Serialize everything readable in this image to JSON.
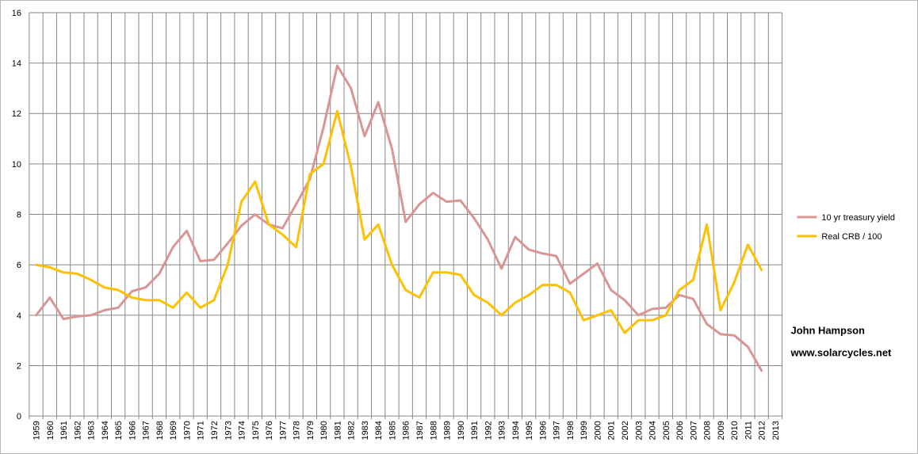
{
  "chart_data": {
    "type": "line",
    "x": [
      1959,
      1960,
      1961,
      1962,
      1963,
      1964,
      1965,
      1966,
      1967,
      1968,
      1969,
      1970,
      1971,
      1972,
      1973,
      1974,
      1975,
      1976,
      1977,
      1978,
      1979,
      1980,
      1981,
      1982,
      1983,
      1984,
      1985,
      1986,
      1987,
      1988,
      1989,
      1990,
      1991,
      1992,
      1993,
      1994,
      1995,
      1996,
      1997,
      1998,
      1999,
      2000,
      2001,
      2002,
      2003,
      2004,
      2005,
      2006,
      2007,
      2008,
      2009,
      2010,
      2011,
      2012
    ],
    "x_tick_labels": [
      "1959",
      "1960",
      "1961",
      "1962",
      "1963",
      "1964",
      "1965",
      "1966",
      "1967",
      "1968",
      "1969",
      "1970",
      "1971",
      "1972",
      "1973",
      "1974",
      "1975",
      "1976",
      "1977",
      "1978",
      "1979",
      "1980",
      "1981",
      "1982",
      "1983",
      "1984",
      "1985",
      "1986",
      "1987",
      "1988",
      "1989",
      "1990",
      "1991",
      "1992",
      "1993",
      "1994",
      "1995",
      "1996",
      "1997",
      "1998",
      "1999",
      "2000",
      "2001",
      "2002",
      "2003",
      "2004",
      "2005",
      "2006",
      "2007",
      "2008",
      "2009",
      "2010",
      "2011",
      "2012",
      "2013"
    ],
    "y_ticks": [
      "0",
      "2",
      "4",
      "6",
      "8",
      "10",
      "12",
      "14",
      "16"
    ],
    "ylim": [
      0,
      16
    ],
    "grid": true,
    "legend_position": "right",
    "series": [
      {
        "name": "10 yr treasury yield",
        "color": "#d99594",
        "values": [
          4.0,
          4.7,
          3.85,
          3.95,
          4.0,
          4.2,
          4.3,
          4.95,
          5.1,
          5.65,
          6.7,
          7.35,
          6.15,
          6.2,
          6.85,
          7.55,
          8.0,
          7.6,
          7.45,
          8.4,
          9.4,
          11.45,
          13.9,
          13.0,
          11.1,
          12.45,
          10.6,
          7.7,
          8.4,
          8.85,
          8.5,
          8.55,
          7.85,
          7.0,
          5.85,
          7.1,
          6.6,
          6.45,
          6.35,
          5.25,
          5.65,
          6.05,
          5.0,
          4.6,
          4.0,
          4.25,
          4.3,
          4.8,
          4.65,
          3.65,
          3.25,
          3.2,
          2.75,
          1.8
        ]
      },
      {
        "name": "Real CRB / 100",
        "color": "#ffc000",
        "values": [
          6.0,
          5.9,
          5.7,
          5.65,
          5.4,
          5.1,
          5.0,
          4.7,
          4.6,
          4.6,
          4.3,
          4.9,
          4.3,
          4.6,
          6.0,
          8.5,
          9.3,
          7.6,
          7.2,
          6.7,
          9.6,
          10.0,
          12.1,
          9.9,
          7.0,
          7.6,
          6.0,
          5.0,
          4.7,
          5.7,
          5.7,
          5.6,
          4.8,
          4.5,
          4.0,
          4.5,
          4.8,
          5.2,
          5.2,
          4.9,
          3.8,
          4.0,
          4.2,
          3.3,
          3.8,
          3.8,
          4.0,
          5.0,
          5.4,
          7.6,
          4.2,
          5.3,
          6.8,
          5.8
        ]
      }
    ]
  },
  "credit": {
    "author": "John Hampson",
    "website": "www.solarcycles.net"
  }
}
